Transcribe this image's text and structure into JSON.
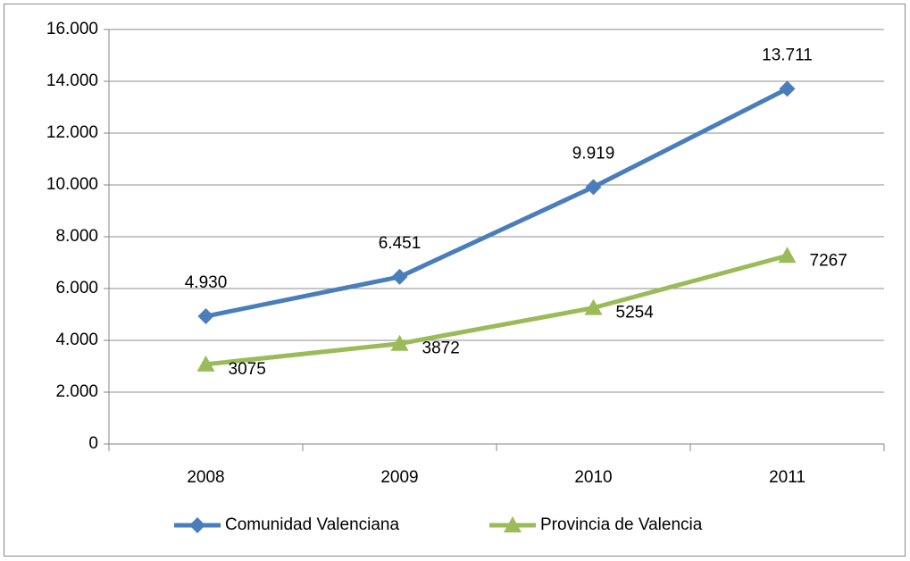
{
  "chart_data": {
    "type": "line",
    "categories": [
      "2008",
      "2009",
      "2010",
      "2011"
    ],
    "series": [
      {
        "name": "Comunidad Valenciana",
        "color": "#4a7ebb",
        "marker": "diamond",
        "values": [
          4930,
          6451,
          9919,
          13711
        ],
        "value_labels": [
          "4.930",
          "6.451",
          "9.919",
          "13.711"
        ]
      },
      {
        "name": "Provincia de Valencia",
        "color": "#9bbb59",
        "marker": "triangle",
        "values": [
          3075,
          3872,
          5254,
          7267
        ]
      }
    ],
    "ylim": [
      0,
      16000
    ],
    "yticks": [
      0,
      {
        "value": 2000,
        "label": "2.000"
      },
      {
        "value": 4000,
        "label": "4.000"
      },
      {
        "value": 6000,
        "label": "6.000"
      },
      {
        "value": 8000,
        "label": "8.000"
      },
      {
        "value": 10000,
        "label": "10.000"
      },
      {
        "value": 12000,
        "label": "12.000"
      },
      {
        "value": 14000,
        "label": "14.000"
      },
      {
        "value": 16000,
        "label": "16.000"
      }
    ],
    "grid": true,
    "legend": "bottom"
  }
}
